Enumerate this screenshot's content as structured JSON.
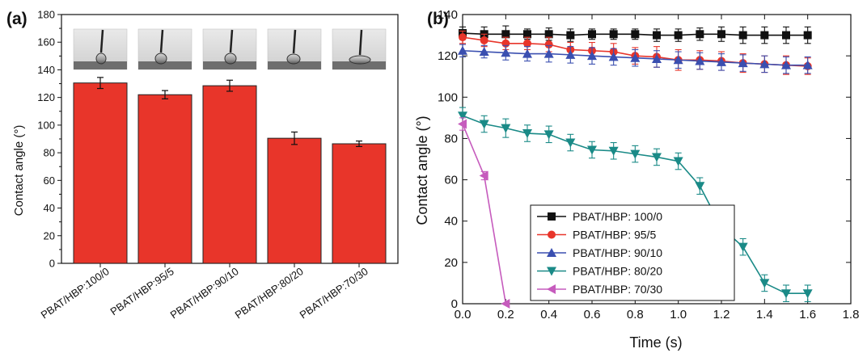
{
  "chart_data": [
    {
      "panel": "(a)",
      "type": "bar",
      "categories": [
        "PBAT/HBP:100/0",
        "PBAT/HBP:95/5",
        "PBAT/HBP:90/10",
        "PBAT/HBP:80/20",
        "PBAT/HBP:70/30"
      ],
      "values": [
        130.5,
        122,
        128.5,
        90.5,
        86.5
      ],
      "errors": [
        4,
        3,
        4,
        4.5,
        2
      ],
      "ylabel": "Contact angle (°)",
      "ylim": [
        0,
        180
      ],
      "yticks": [
        0,
        20,
        40,
        60,
        80,
        100,
        120,
        140,
        160,
        180
      ],
      "bar_color": "#e8352a",
      "insets": "droplet photographs above each bar"
    },
    {
      "panel": "(b)",
      "type": "line",
      "xlabel": "Time (s)",
      "ylabel": "Contact angle (°)",
      "xlim": [
        0,
        1.8
      ],
      "ylim": [
        0,
        140
      ],
      "xticks": [
        "0.0",
        "0.2",
        "0.4",
        "0.6",
        "0.8",
        "1.0",
        "1.2",
        "1.4",
        "1.6",
        "1.8"
      ],
      "yticks": [
        "0",
        "20",
        "40",
        "60",
        "80",
        "100",
        "120",
        "140"
      ],
      "legend_position": "bottom-center",
      "series": [
        {
          "name": "PBAT/HBP: 100/0",
          "color": "#111111",
          "marker": "square",
          "x": [
            0,
            0.1,
            0.2,
            0.3,
            0.4,
            0.5,
            0.6,
            0.7,
            0.8,
            0.9,
            1.0,
            1.1,
            1.2,
            1.3,
            1.4,
            1.5,
            1.6
          ],
          "y": [
            131,
            130.5,
            130.5,
            130.5,
            130.5,
            130,
            130.5,
            130.5,
            130.5,
            130,
            130,
            130.5,
            130.5,
            130,
            130,
            130,
            130
          ],
          "err": [
            3,
            3.5,
            4,
            2.5,
            3,
            3,
            2.5,
            2.5,
            2.5,
            3,
            3,
            3,
            3.5,
            4,
            4,
            4,
            4
          ]
        },
        {
          "name": "PBAT/HBP: 95/5",
          "color": "#e8352a",
          "marker": "circle",
          "x": [
            0,
            0.1,
            0.2,
            0.3,
            0.4,
            0.5,
            0.6,
            0.7,
            0.8,
            0.9,
            1.0,
            1.1,
            1.2,
            1.3,
            1.4,
            1.5,
            1.6
          ],
          "y": [
            129,
            127.5,
            126,
            126,
            125.5,
            123,
            122.5,
            122,
            120,
            119.5,
            118,
            118,
            117.5,
            116.5,
            116,
            115.5,
            115
          ],
          "err": [
            3,
            3,
            3,
            3,
            3.5,
            3.5,
            4,
            4,
            4,
            5,
            5,
            4.5,
            4.5,
            4.5,
            4,
            4.5,
            4
          ]
        },
        {
          "name": "PBAT/HBP: 90/10",
          "color": "#3a4fb0",
          "marker": "triangle-up",
          "x": [
            0,
            0.1,
            0.2,
            0.3,
            0.4,
            0.5,
            0.6,
            0.7,
            0.8,
            0.9,
            1.0,
            1.1,
            1.2,
            1.3,
            1.4,
            1.5,
            1.6
          ],
          "y": [
            122.5,
            122,
            121.5,
            121,
            121,
            120.5,
            120,
            119.5,
            119,
            118.5,
            118,
            117.5,
            117,
            116.5,
            116,
            115.5,
            115.5
          ],
          "err": [
            3,
            3,
            3.5,
            3.5,
            4,
            4,
            4,
            4,
            4,
            4,
            4,
            4,
            4,
            4,
            4,
            4,
            4
          ]
        },
        {
          "name": "PBAT/HBP: 80/20",
          "color": "#1a8a87",
          "marker": "triangle-down",
          "x": [
            0,
            0.1,
            0.2,
            0.3,
            0.4,
            0.5,
            0.6,
            0.7,
            0.8,
            0.9,
            1.0,
            1.1,
            1.2,
            1.3,
            1.4,
            1.5,
            1.6
          ],
          "y": [
            91,
            87,
            85,
            82.5,
            82,
            78,
            74.5,
            74,
            72.5,
            71,
            69,
            57,
            37,
            27.5,
            10,
            5,
            5
          ],
          "err": [
            4,
            4,
            4.5,
            4,
            4,
            4,
            4,
            4,
            4,
            4,
            4,
            4,
            4,
            4,
            4,
            4,
            4
          ]
        },
        {
          "name": "PBAT/HBP: 70/30",
          "color": "#c65bbd",
          "marker": "triangle-left",
          "x": [
            0,
            0.1,
            0.2
          ],
          "y": [
            87,
            62,
            0
          ],
          "err": [
            3,
            2,
            0
          ]
        }
      ]
    }
  ]
}
